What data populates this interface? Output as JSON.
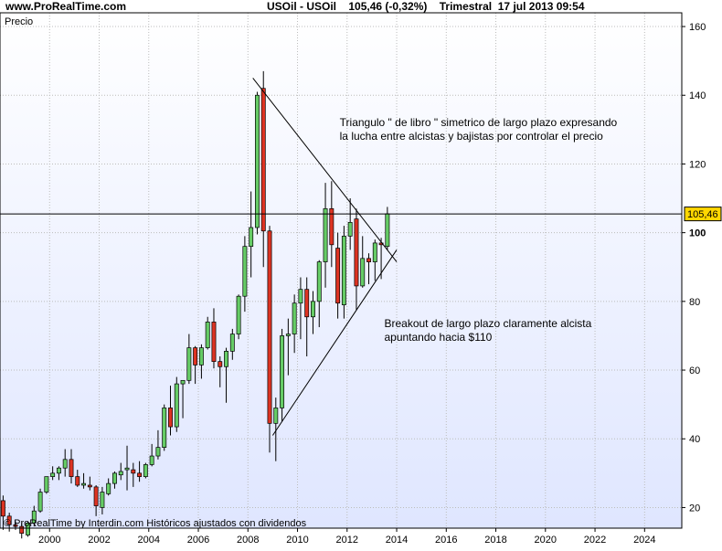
{
  "header": {
    "site": "www.ProRealTime.com",
    "quote": "USOil - USOil    105,46 (-0,32%)    Trimestral  17 jul 2013 09:54"
  },
  "chart_data": {
    "type": "candlestick",
    "panel_label": "Precio",
    "footer": "© ProRealTime by Interdin.com  Históricos ajustados con dividendos",
    "y_ticks": [
      20,
      40,
      60,
      80,
      100,
      120,
      140,
      160
    ],
    "y_tick_labels": [
      "20",
      "40",
      "60",
      "80",
      "100",
      "120",
      "140",
      "160"
    ],
    "x_ticks": [
      2000,
      2002,
      2004,
      2006,
      2008,
      2010,
      2012,
      2014,
      2016,
      2018,
      2020,
      2022,
      2024
    ],
    "x_tick_labels": [
      "2000",
      "2002",
      "2004",
      "2006",
      "2008",
      "2010",
      "2012",
      "2014",
      "2016",
      "2018",
      "2020",
      "2022",
      "2024"
    ],
    "ylim": [
      14,
      164
    ],
    "xlim": [
      1998.0,
      2025.5
    ],
    "last_price": 105.46,
    "last_price_label": "105,46",
    "colors": {
      "up": "#66cc66",
      "down": "#dd3322",
      "bg_top": "#ffffff",
      "bg_bottom": "#dfe6ff"
    },
    "candles": [
      {
        "t": 1998.0,
        "o": 22.0,
        "h": 23.5,
        "l": 13.5,
        "c": 17.5
      },
      {
        "t": 1998.25,
        "o": 17.5,
        "h": 18.5,
        "l": 13.0,
        "c": 15.0
      },
      {
        "t": 1998.5,
        "o": 15.0,
        "h": 16.0,
        "l": 13.5,
        "c": 14.5
      },
      {
        "t": 1998.75,
        "o": 14.5,
        "h": 15.5,
        "l": 11.0,
        "c": 12.5
      },
      {
        "t": 1999.0,
        "o": 12.0,
        "h": 16.0,
        "l": 11.5,
        "c": 15.5
      },
      {
        "t": 1999.25,
        "o": 15.5,
        "h": 20.5,
        "l": 14.5,
        "c": 19.0
      },
      {
        "t": 1999.5,
        "o": 19.0,
        "h": 25.5,
        "l": 18.5,
        "c": 24.5
      },
      {
        "t": 1999.75,
        "o": 24.5,
        "h": 29.0,
        "l": 24.0,
        "c": 29.0
      },
      {
        "t": 2000.0,
        "o": 29.0,
        "h": 32.0,
        "l": 28.0,
        "c": 30.0
      },
      {
        "t": 2000.25,
        "o": 30.0,
        "h": 32.0,
        "l": 28.0,
        "c": 31.5
      },
      {
        "t": 2000.5,
        "o": 31.5,
        "h": 37.0,
        "l": 29.0,
        "c": 34.0
      },
      {
        "t": 2000.75,
        "o": 34.0,
        "h": 37.0,
        "l": 27.0,
        "c": 29.0
      },
      {
        "t": 2001.0,
        "o": 29.0,
        "h": 31.0,
        "l": 26.0,
        "c": 26.5
      },
      {
        "t": 2001.25,
        "o": 26.5,
        "h": 30.0,
        "l": 25.5,
        "c": 27.0
      },
      {
        "t": 2001.5,
        "o": 26.5,
        "h": 29.0,
        "l": 25.0,
        "c": 26.0
      },
      {
        "t": 2001.75,
        "o": 26.0,
        "h": 26.5,
        "l": 17.5,
        "c": 20.5
      },
      {
        "t": 2002.0,
        "o": 20.0,
        "h": 26.0,
        "l": 18.0,
        "c": 24.5
      },
      {
        "t": 2002.25,
        "o": 24.0,
        "h": 28.5,
        "l": 23.5,
        "c": 27.0
      },
      {
        "t": 2002.5,
        "o": 27.0,
        "h": 30.5,
        "l": 25.5,
        "c": 30.0
      },
      {
        "t": 2002.75,
        "o": 29.5,
        "h": 33.0,
        "l": 28.0,
        "c": 30.5
      },
      {
        "t": 2003.0,
        "o": 31.0,
        "h": 38.0,
        "l": 25.0,
        "c": 31.5
      },
      {
        "t": 2003.25,
        "o": 31.0,
        "h": 33.0,
        "l": 26.0,
        "c": 30.0
      },
      {
        "t": 2003.5,
        "o": 30.0,
        "h": 33.5,
        "l": 27.5,
        "c": 29.0
      },
      {
        "t": 2003.75,
        "o": 29.0,
        "h": 33.0,
        "l": 28.5,
        "c": 32.5
      },
      {
        "t": 2004.0,
        "o": 32.5,
        "h": 38.5,
        "l": 32.0,
        "c": 35.0
      },
      {
        "t": 2004.25,
        "o": 35.0,
        "h": 42.5,
        "l": 34.0,
        "c": 37.5
      },
      {
        "t": 2004.5,
        "o": 37.5,
        "h": 50.0,
        "l": 36.5,
        "c": 49.0
      },
      {
        "t": 2004.75,
        "o": 49.0,
        "h": 55.5,
        "l": 41.0,
        "c": 43.5
      },
      {
        "t": 2005.0,
        "o": 43.5,
        "h": 58.0,
        "l": 42.0,
        "c": 56.0
      },
      {
        "t": 2005.25,
        "o": 56.0,
        "h": 57.0,
        "l": 46.0,
        "c": 57.0
      },
      {
        "t": 2005.5,
        "o": 57.0,
        "h": 70.5,
        "l": 56.0,
        "c": 66.5
      },
      {
        "t": 2005.75,
        "o": 66.5,
        "h": 67.0,
        "l": 56.0,
        "c": 61.5
      },
      {
        "t": 2006.0,
        "o": 61.5,
        "h": 67.5,
        "l": 57.5,
        "c": 66.5
      },
      {
        "t": 2006.25,
        "o": 66.5,
        "h": 75.5,
        "l": 66.0,
        "c": 74.0
      },
      {
        "t": 2006.5,
        "o": 74.0,
        "h": 78.0,
        "l": 60.5,
        "c": 62.5
      },
      {
        "t": 2006.75,
        "o": 62.5,
        "h": 64.0,
        "l": 55.0,
        "c": 61.0
      },
      {
        "t": 2007.0,
        "o": 61.0,
        "h": 66.5,
        "l": 50.5,
        "c": 65.5
      },
      {
        "t": 2007.25,
        "o": 65.5,
        "h": 72.0,
        "l": 63.0,
        "c": 70.5
      },
      {
        "t": 2007.5,
        "o": 70.5,
        "h": 82.0,
        "l": 69.0,
        "c": 81.5
      },
      {
        "t": 2007.75,
        "o": 81.5,
        "h": 99.0,
        "l": 77.0,
        "c": 96.0
      },
      {
        "t": 2008.0,
        "o": 96.0,
        "h": 112.0,
        "l": 87.0,
        "c": 101.5
      },
      {
        "t": 2008.25,
        "o": 101.5,
        "h": 141.0,
        "l": 99.5,
        "c": 140.0
      },
      {
        "t": 2008.5,
        "o": 142.0,
        "h": 147.0,
        "l": 90.0,
        "c": 100.5
      },
      {
        "t": 2008.75,
        "o": 100.5,
        "h": 102.0,
        "l": 36.0,
        "c": 44.5
      },
      {
        "t": 2009.0,
        "o": 44.5,
        "h": 52.0,
        "l": 33.5,
        "c": 49.0
      },
      {
        "t": 2009.25,
        "o": 49.0,
        "h": 72.0,
        "l": 45.0,
        "c": 70.0
      },
      {
        "t": 2009.5,
        "o": 70.0,
        "h": 75.0,
        "l": 58.5,
        "c": 70.5
      },
      {
        "t": 2009.75,
        "o": 70.5,
        "h": 82.0,
        "l": 65.0,
        "c": 79.5
      },
      {
        "t": 2010.0,
        "o": 79.5,
        "h": 87.0,
        "l": 69.0,
        "c": 83.5
      },
      {
        "t": 2010.25,
        "o": 83.5,
        "h": 87.0,
        "l": 64.0,
        "c": 75.5
      },
      {
        "t": 2010.5,
        "o": 75.5,
        "h": 83.0,
        "l": 70.5,
        "c": 80.0
      },
      {
        "t": 2010.75,
        "o": 80.0,
        "h": 92.0,
        "l": 72.5,
        "c": 91.5
      },
      {
        "t": 2011.0,
        "o": 91.5,
        "h": 114.5,
        "l": 84.0,
        "c": 107.0
      },
      {
        "t": 2011.25,
        "o": 107.0,
        "h": 115.0,
        "l": 90.0,
        "c": 96.5
      },
      {
        "t": 2011.5,
        "o": 95.5,
        "h": 100.0,
        "l": 75.0,
        "c": 79.5
      },
      {
        "t": 2011.75,
        "o": 79.0,
        "h": 102.0,
        "l": 75.0,
        "c": 99.0
      },
      {
        "t": 2012.0,
        "o": 99.0,
        "h": 110.0,
        "l": 95.0,
        "c": 103.0
      },
      {
        "t": 2012.25,
        "o": 104.0,
        "h": 107.0,
        "l": 77.5,
        "c": 84.5
      },
      {
        "t": 2012.5,
        "o": 84.5,
        "h": 99.0,
        "l": 84.0,
        "c": 92.5
      },
      {
        "t": 2012.75,
        "o": 92.5,
        "h": 94.0,
        "l": 85.0,
        "c": 91.5
      },
      {
        "t": 2013.0,
        "o": 91.5,
        "h": 98.0,
        "l": 86.0,
        "c": 97.0
      },
      {
        "t": 2013.25,
        "o": 97.0,
        "h": 98.5,
        "l": 86.5,
        "c": 96.5
      },
      {
        "t": 2013.5,
        "o": 96.0,
        "h": 107.5,
        "l": 95.0,
        "c": 105.5
      }
    ],
    "annotations": [
      {
        "kind": "line",
        "x1": 2008.2,
        "y1": 145.0,
        "x2": 2014.0,
        "y2": 91.5
      },
      {
        "kind": "line",
        "x1": 2009.0,
        "y1": 41.0,
        "x2": 2014.0,
        "y2": 95.0
      },
      {
        "kind": "text",
        "lines": [
          "Triangulo \" de libro \" simetrico de largo plazo expresando",
          "la lucha entre alcistas y bajistas por controlar el precio"
        ],
        "x": 2011.7,
        "y": 131.0
      },
      {
        "kind": "text",
        "lines": [
          "Breakout de largo plazo claramente alcista",
          "apuntando hacia $110"
        ],
        "x": 2013.5,
        "y": 72.5
      }
    ]
  }
}
